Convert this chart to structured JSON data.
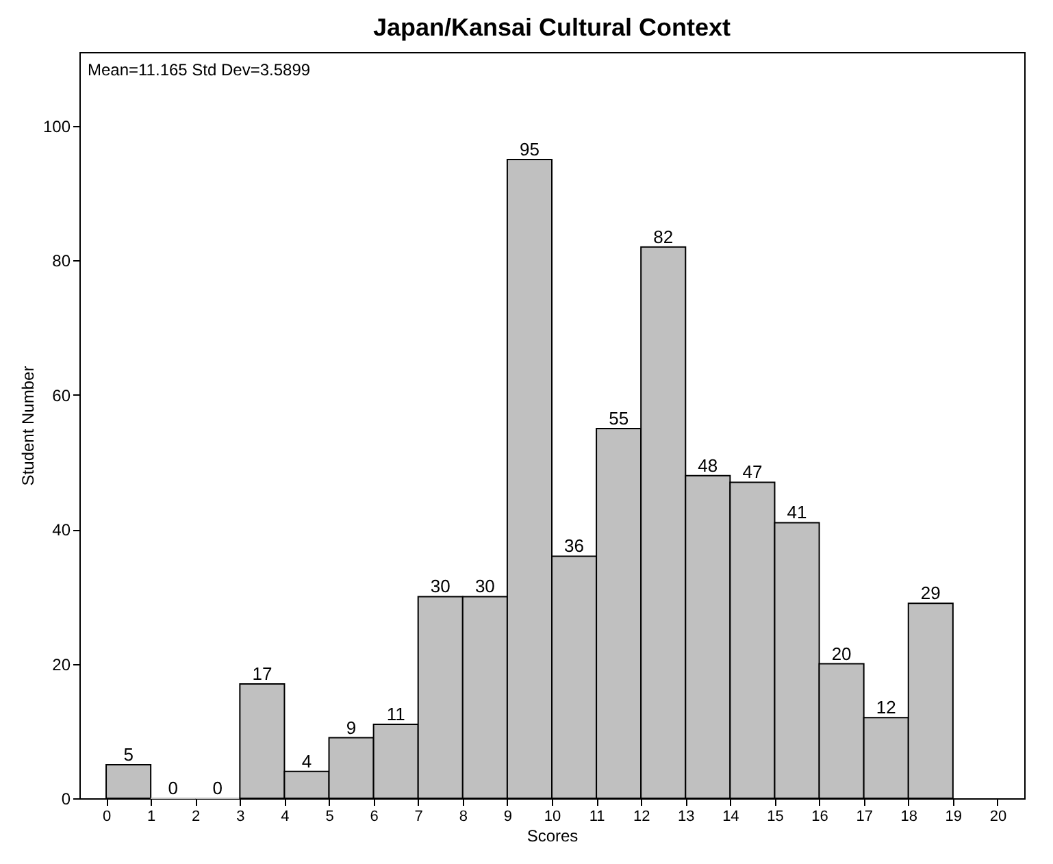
{
  "chart_data": {
    "type": "histogram",
    "title": "Japan/Kansai Cultural Context",
    "xlabel": "Scores",
    "ylabel": "Student Number",
    "annotations": [
      "Mean=11.165  Std Dev=3.5899"
    ],
    "bins": [
      0,
      1,
      2,
      3,
      4,
      5,
      6,
      7,
      8,
      9,
      10,
      11,
      12,
      13,
      14,
      15,
      16,
      17,
      18,
      19
    ],
    "values": [
      5,
      0,
      0,
      17,
      4,
      9,
      11,
      30,
      30,
      95,
      36,
      55,
      82,
      48,
      47,
      41,
      20,
      12,
      29
    ],
    "color": "#c0c0c0",
    "data_labels": true,
    "grid": false,
    "xlim": [
      -0.6,
      20.6
    ],
    "xticks": [
      0,
      1,
      2,
      3,
      4,
      5,
      6,
      7,
      8,
      9,
      10,
      11,
      12,
      13,
      14,
      15,
      16,
      17,
      18,
      19,
      20
    ],
    "ylim": [
      0,
      111
    ],
    "yticks": [
      0,
      20,
      40,
      60,
      80,
      100
    ]
  }
}
